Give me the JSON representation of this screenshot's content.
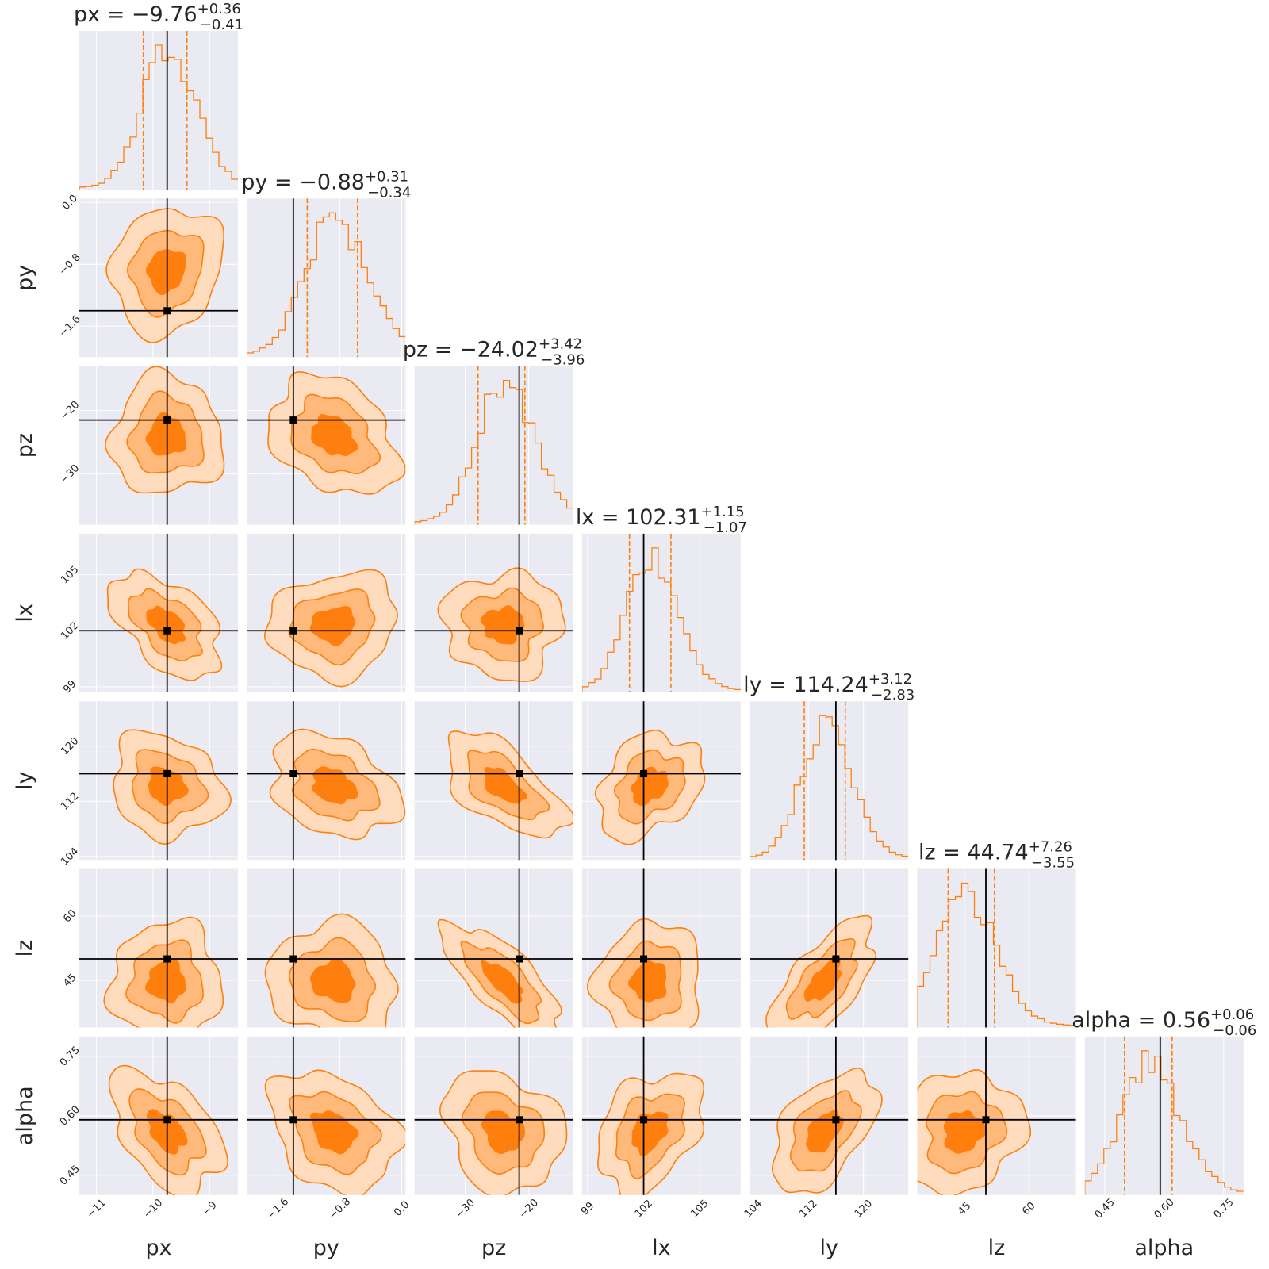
{
  "chart_data": {
    "type": "corner",
    "parameters": [
      "px",
      "py",
      "pz",
      "lx",
      "ly",
      "lz",
      "alpha"
    ],
    "axis_labels": [
      "px",
      "py",
      "pz",
      "lx",
      "ly",
      "lz",
      "alpha"
    ],
    "titles": [
      {
        "name": "px",
        "value": "−9.76",
        "plus": "+0.36",
        "minus": "−0.41"
      },
      {
        "name": "py",
        "value": "−0.88",
        "plus": "+0.31",
        "minus": "−0.34"
      },
      {
        "name": "pz",
        "value": "−24.02",
        "plus": "+3.42",
        "minus": "−3.96"
      },
      {
        "name": "lx",
        "value": "102.31",
        "plus": "+1.15",
        "minus": "−1.07"
      },
      {
        "name": "ly",
        "value": "114.24",
        "plus": "+3.12",
        "minus": "−2.83"
      },
      {
        "name": "lz",
        "value": "44.74",
        "plus": "+7.26",
        "minus": "−3.55"
      },
      {
        "name": "alpha",
        "value": "0.56",
        "plus": "+0.06",
        "minus": "−0.06"
      }
    ],
    "ranges": [
      [
        -11.3,
        -8.5
      ],
      [
        -2.0,
        0.05
      ],
      [
        -38,
        -13
      ],
      [
        98.7,
        107.2
      ],
      [
        103.5,
        126.5
      ],
      [
        34,
        71
      ],
      [
        0.4,
        0.8
      ]
    ],
    "ticks": [
      {
        "values": [
          -11,
          -10,
          -9
        ],
        "labels": [
          "−11",
          "−10",
          "−9"
        ]
      },
      {
        "values": [
          -1.6,
          -0.8,
          0.0
        ],
        "labels": [
          "−1.6",
          "−0.8",
          "0.0"
        ]
      },
      {
        "values": [
          -30,
          -20
        ],
        "labels": [
          "−30",
          "−20"
        ]
      },
      {
        "values": [
          99,
          102,
          105
        ],
        "labels": [
          "99",
          "102",
          "105"
        ]
      },
      {
        "values": [
          104,
          112,
          120
        ],
        "labels": [
          "104",
          "112",
          "120"
        ]
      },
      {
        "values": [
          45,
          60
        ],
        "labels": [
          "45",
          "60"
        ]
      },
      {
        "values": [
          0.45,
          0.6,
          0.75
        ],
        "labels": [
          "0.45",
          "0.60",
          "0.75"
        ]
      }
    ],
    "medians": [
      -9.76,
      -0.88,
      -24.02,
      102.31,
      114.24,
      44.74,
      0.56
    ],
    "lower": [
      -10.17,
      -1.22,
      -27.98,
      101.24,
      111.41,
      41.19,
      0.5
    ],
    "upper": [
      -9.4,
      -0.57,
      -20.6,
      103.46,
      117.36,
      52.0,
      0.62
    ],
    "truths": [
      -9.75,
      -1.4,
      -21.5,
      102.0,
      116.0,
      50.0,
      0.59
    ],
    "correlations": {
      "px-py": 0.15,
      "px-pz": 0.0,
      "py-pz": -0.3,
      "px-lx": -0.5,
      "py-lx": 0.1,
      "pz-lx": 0.0,
      "px-ly": -0.15,
      "py-ly": -0.3,
      "pz-ly": -0.6,
      "lx-ly": 0.3,
      "px-lz": 0.0,
      "py-lz": -0.1,
      "pz-lz": -0.75,
      "lx-lz": 0.05,
      "ly-lz": 0.65,
      "lz-lz": 1.0,
      "px-alpha": -0.45,
      "py-alpha": -0.3,
      "pz-alpha": -0.2,
      "lx-alpha": 0.35,
      "ly-alpha": 0.5,
      "lz-alpha": 0.1
    },
    "grid": true,
    "colors": {
      "axes_bg": "#eaeaf2",
      "grid": "#ffffff",
      "line": "#ff7f0e",
      "fill_inner": "#ff7f0e",
      "fill_mid": "#ffb97a",
      "fill_outer": "#fedcbd",
      "truth": "#000000",
      "text": "#262626"
    }
  }
}
